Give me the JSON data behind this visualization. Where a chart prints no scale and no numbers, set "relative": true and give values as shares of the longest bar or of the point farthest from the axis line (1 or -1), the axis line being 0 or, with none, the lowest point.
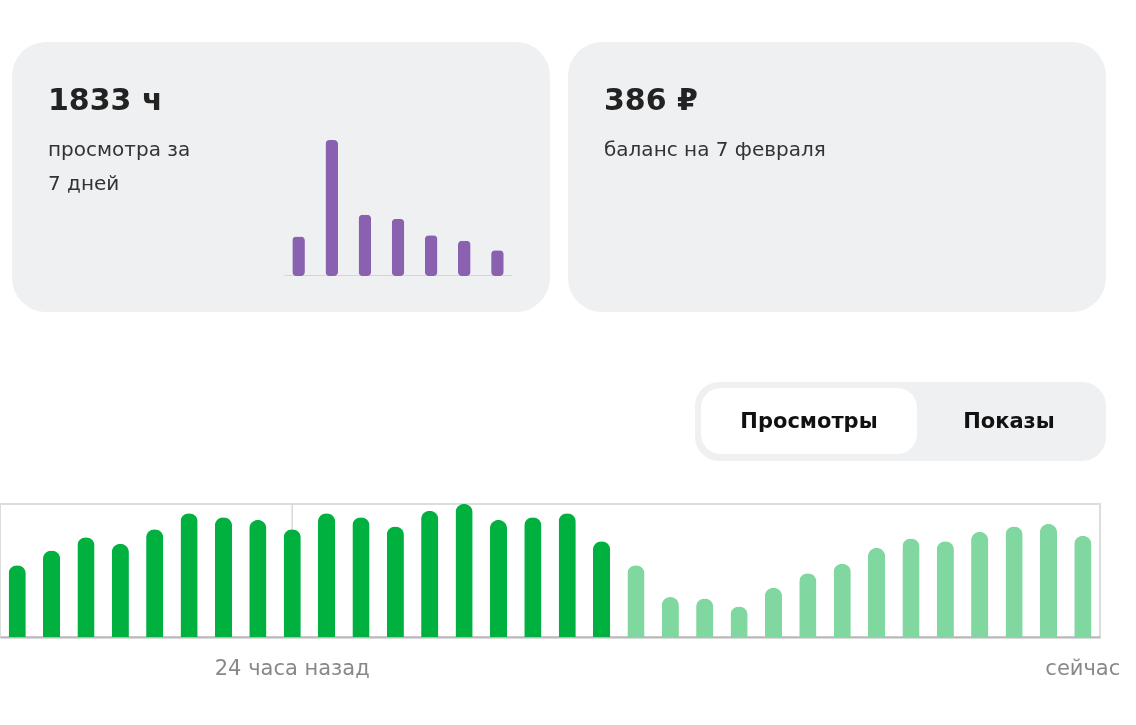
{
  "chart_data": [
    {
      "type": "bar",
      "title": "1833 ч",
      "subtitle": "просмотра за 7 дней",
      "relative": true,
      "tick_labels": false,
      "categories": [
        null,
        null,
        null,
        null,
        null,
        null,
        null
      ],
      "values": [
        0.29,
        1,
        0.45,
        0.42,
        0.3,
        0.26,
        0.19
      ],
      "color": "#8a60b0"
    },
    {
      "type": "other",
      "title": "386 ₽",
      "subtitle": "баланс на 7 февраля"
    },
    {
      "type": "bar",
      "relative": true,
      "tick_labels": "x",
      "annotations": [
        "Просмотры",
        "Показы"
      ],
      "categories": [
        null,
        null,
        null,
        null,
        null,
        null,
        null,
        null,
        "24 часа назад",
        null,
        null,
        null,
        null,
        null,
        null,
        null,
        null,
        null,
        null,
        null,
        null,
        null,
        null,
        null,
        null,
        null,
        null,
        null,
        null,
        null,
        null,
        "сейчас"
      ],
      "values": [
        0.54,
        0.65,
        0.75,
        0.7,
        0.81,
        0.93,
        0.9,
        0.88,
        0.81,
        0.93,
        0.9,
        0.83,
        0.95,
        1,
        0.88,
        0.9,
        0.93,
        0.72,
        0.54,
        0.3,
        0.29,
        0.23,
        0.37,
        0.48,
        0.55,
        0.67,
        0.74,
        0.72,
        0.79,
        0.83,
        0.85,
        0.76
      ],
      "colors": [
        "#00b140",
        "#00b140",
        "#00b140",
        "#00b140",
        "#00b140",
        "#00b140",
        "#00b140",
        "#00b140",
        "#00b140",
        "#00b140",
        "#00b140",
        "#00b140",
        "#00b140",
        "#00b140",
        "#00b140",
        "#00b140",
        "#00b140",
        "#00b140",
        "#80d8a0",
        "#80d8a0",
        "#80d8a0",
        "#80d8a0",
        "#80d8a0",
        "#80d8a0",
        "#80d8a0",
        "#80d8a0",
        "#80d8a0",
        "#80d8a0",
        "#80d8a0",
        "#80d8a0",
        "#80d8a0",
        "#80d8a0"
      ],
      "ref_lines": [
        {
          "axis": "x",
          "value": "24 часа назад",
          "color": "#d8d8d8"
        }
      ]
    }
  ]
}
